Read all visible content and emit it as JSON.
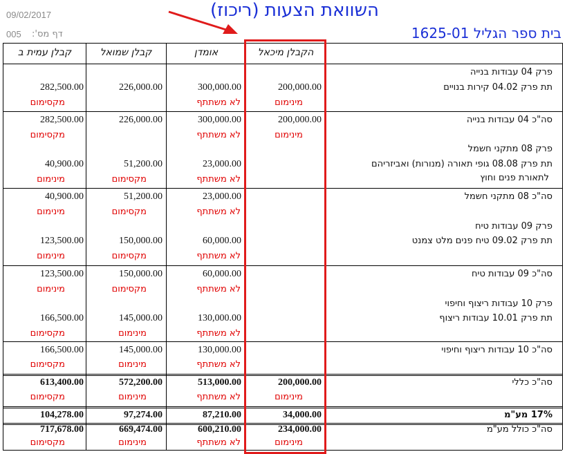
{
  "header": {
    "date": "09/02/2017",
    "page_label": "דף מס':",
    "page_number": "005",
    "title": "השוואת הצעות (ריכוז)",
    "school": "בית ספר הגליל 1625-01"
  },
  "columns": [
    "הקבלן מיכאל",
    "אומדן",
    "קבלן שמואל",
    "קבלן עמית ב"
  ],
  "rows": {
    "r1": {
      "labels": [
        "פרק 04 עבודות בנייה",
        "תת פרק 04.02 קירות בנויים"
      ],
      "values": [
        "200,000.00",
        "300,000.00",
        "226,000.00",
        "282,500.00"
      ],
      "tags": [
        "מינימום",
        "לא משתתף",
        "",
        "מקסימום"
      ]
    },
    "r2": {
      "labels": [
        "סה\"כ 04 עבודות בנייה",
        "פרק 08 מתקני חשמל",
        "תת פרק 08.08 גופי תאורה (מנורות) ואביזריהם",
        "לתאורת פנים וחוץ"
      ],
      "values": [
        "200,000.00",
        "300,000.00",
        "226,000.00",
        "282,500.00"
      ],
      "tags": [
        "מינימום",
        "לא משתתף",
        "",
        "מקסימום"
      ],
      "values2": [
        "",
        "23,000.00",
        "51,200.00",
        "40,900.00"
      ],
      "tags2": [
        "",
        "לא משתתף",
        "מקסימום",
        "מינימום"
      ]
    },
    "r3": {
      "labels": [
        "סה\"כ 08 מתקני חשמל",
        "פרק 09 עבודות טיח",
        "תת פרק 09.02 טיח פנים מלט צמנט"
      ],
      "values": [
        "",
        "23,000.00",
        "51,200.00",
        "40,900.00"
      ],
      "tags": [
        "",
        "לא משתתף",
        "מקסימום",
        "מינימום"
      ],
      "values2": [
        "",
        "60,000.00",
        "150,000.00",
        "123,500.00"
      ],
      "tags2": [
        "",
        "לא משתתף",
        "מקסימום",
        "מינימום"
      ]
    },
    "r4": {
      "labels": [
        "סה\"כ 09 עבודות טיח",
        "פרק 10 עבודות ריצוף וחיפוי",
        "תת פרק 10.01 עבודות ריצוף"
      ],
      "values": [
        "",
        "60,000.00",
        "150,000.00",
        "123,500.00"
      ],
      "tags": [
        "",
        "לא משתתף",
        "מקסימום",
        "מינימום"
      ],
      "values2": [
        "",
        "130,000.00",
        "145,000.00",
        "166,500.00"
      ],
      "tags2": [
        "",
        "לא משתתף",
        "מינימום",
        "מקסימום"
      ]
    },
    "r5": {
      "labels": [
        "סה\"כ 10 עבודות ריצוף וחיפוי"
      ],
      "values": [
        "",
        "130,000.00",
        "145,000.00",
        "166,500.00"
      ],
      "tags": [
        "",
        "לא משתתף",
        "מינימום",
        "מקסימום"
      ]
    },
    "total": {
      "label": "סה\"כ כללי",
      "values": [
        "200,000.00",
        "513,000.00",
        "572,200.00",
        "613,400.00"
      ],
      "tags": [
        "מינימום",
        "לא משתתף",
        "מינימום",
        "מקסימום"
      ]
    },
    "vat": {
      "label": "17% מע\"מ",
      "values": [
        "34,000.00",
        "87,210.00",
        "97,274.00",
        "104,278.00"
      ]
    },
    "grand": {
      "label": "סה\"כ כולל מע\"מ",
      "values": [
        "234,000.00",
        "600,210.00",
        "669,474.00",
        "717,678.00"
      ],
      "tags": [
        "מינימום",
        "לא משתתף",
        "מינימום",
        "מקסימום"
      ]
    }
  },
  "colors": {
    "annotation": "#e01b1b",
    "title": "#1a2fd6",
    "tag": "#e00000"
  }
}
